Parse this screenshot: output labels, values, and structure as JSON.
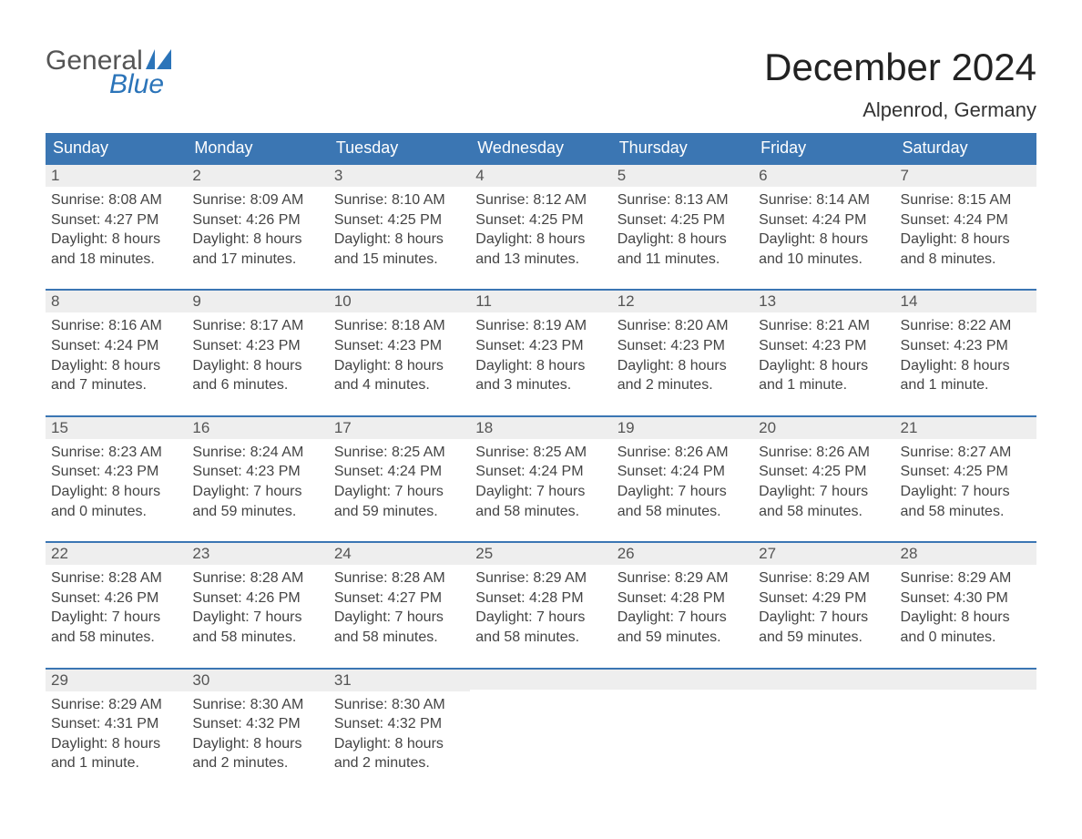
{
  "logo": {
    "general": "General",
    "blue": "Blue",
    "accent_color": "#2b74b9"
  },
  "title": "December 2024",
  "location": "Alpenrod, Germany",
  "colors": {
    "header_bg": "#3b76b3",
    "header_text": "#ffffff",
    "daynum_bg": "#eeeeee",
    "daynum_border": "#3b76b3",
    "body_bg": "#ffffff",
    "text": "#444444"
  },
  "weekdays": [
    "Sunday",
    "Monday",
    "Tuesday",
    "Wednesday",
    "Thursday",
    "Friday",
    "Saturday"
  ],
  "weeks": [
    [
      {
        "n": "1",
        "sunrise": "Sunrise: 8:08 AM",
        "sunset": "Sunset: 4:27 PM",
        "day1": "Daylight: 8 hours",
        "day2": "and 18 minutes."
      },
      {
        "n": "2",
        "sunrise": "Sunrise: 8:09 AM",
        "sunset": "Sunset: 4:26 PM",
        "day1": "Daylight: 8 hours",
        "day2": "and 17 minutes."
      },
      {
        "n": "3",
        "sunrise": "Sunrise: 8:10 AM",
        "sunset": "Sunset: 4:25 PM",
        "day1": "Daylight: 8 hours",
        "day2": "and 15 minutes."
      },
      {
        "n": "4",
        "sunrise": "Sunrise: 8:12 AM",
        "sunset": "Sunset: 4:25 PM",
        "day1": "Daylight: 8 hours",
        "day2": "and 13 minutes."
      },
      {
        "n": "5",
        "sunrise": "Sunrise: 8:13 AM",
        "sunset": "Sunset: 4:25 PM",
        "day1": "Daylight: 8 hours",
        "day2": "and 11 minutes."
      },
      {
        "n": "6",
        "sunrise": "Sunrise: 8:14 AM",
        "sunset": "Sunset: 4:24 PM",
        "day1": "Daylight: 8 hours",
        "day2": "and 10 minutes."
      },
      {
        "n": "7",
        "sunrise": "Sunrise: 8:15 AM",
        "sunset": "Sunset: 4:24 PM",
        "day1": "Daylight: 8 hours",
        "day2": "and 8 minutes."
      }
    ],
    [
      {
        "n": "8",
        "sunrise": "Sunrise: 8:16 AM",
        "sunset": "Sunset: 4:24 PM",
        "day1": "Daylight: 8 hours",
        "day2": "and 7 minutes."
      },
      {
        "n": "9",
        "sunrise": "Sunrise: 8:17 AM",
        "sunset": "Sunset: 4:23 PM",
        "day1": "Daylight: 8 hours",
        "day2": "and 6 minutes."
      },
      {
        "n": "10",
        "sunrise": "Sunrise: 8:18 AM",
        "sunset": "Sunset: 4:23 PM",
        "day1": "Daylight: 8 hours",
        "day2": "and 4 minutes."
      },
      {
        "n": "11",
        "sunrise": "Sunrise: 8:19 AM",
        "sunset": "Sunset: 4:23 PM",
        "day1": "Daylight: 8 hours",
        "day2": "and 3 minutes."
      },
      {
        "n": "12",
        "sunrise": "Sunrise: 8:20 AM",
        "sunset": "Sunset: 4:23 PM",
        "day1": "Daylight: 8 hours",
        "day2": "and 2 minutes."
      },
      {
        "n": "13",
        "sunrise": "Sunrise: 8:21 AM",
        "sunset": "Sunset: 4:23 PM",
        "day1": "Daylight: 8 hours",
        "day2": "and 1 minute."
      },
      {
        "n": "14",
        "sunrise": "Sunrise: 8:22 AM",
        "sunset": "Sunset: 4:23 PM",
        "day1": "Daylight: 8 hours",
        "day2": "and 1 minute."
      }
    ],
    [
      {
        "n": "15",
        "sunrise": "Sunrise: 8:23 AM",
        "sunset": "Sunset: 4:23 PM",
        "day1": "Daylight: 8 hours",
        "day2": "and 0 minutes."
      },
      {
        "n": "16",
        "sunrise": "Sunrise: 8:24 AM",
        "sunset": "Sunset: 4:23 PM",
        "day1": "Daylight: 7 hours",
        "day2": "and 59 minutes."
      },
      {
        "n": "17",
        "sunrise": "Sunrise: 8:25 AM",
        "sunset": "Sunset: 4:24 PM",
        "day1": "Daylight: 7 hours",
        "day2": "and 59 minutes."
      },
      {
        "n": "18",
        "sunrise": "Sunrise: 8:25 AM",
        "sunset": "Sunset: 4:24 PM",
        "day1": "Daylight: 7 hours",
        "day2": "and 58 minutes."
      },
      {
        "n": "19",
        "sunrise": "Sunrise: 8:26 AM",
        "sunset": "Sunset: 4:24 PM",
        "day1": "Daylight: 7 hours",
        "day2": "and 58 minutes."
      },
      {
        "n": "20",
        "sunrise": "Sunrise: 8:26 AM",
        "sunset": "Sunset: 4:25 PM",
        "day1": "Daylight: 7 hours",
        "day2": "and 58 minutes."
      },
      {
        "n": "21",
        "sunrise": "Sunrise: 8:27 AM",
        "sunset": "Sunset: 4:25 PM",
        "day1": "Daylight: 7 hours",
        "day2": "and 58 minutes."
      }
    ],
    [
      {
        "n": "22",
        "sunrise": "Sunrise: 8:28 AM",
        "sunset": "Sunset: 4:26 PM",
        "day1": "Daylight: 7 hours",
        "day2": "and 58 minutes."
      },
      {
        "n": "23",
        "sunrise": "Sunrise: 8:28 AM",
        "sunset": "Sunset: 4:26 PM",
        "day1": "Daylight: 7 hours",
        "day2": "and 58 minutes."
      },
      {
        "n": "24",
        "sunrise": "Sunrise: 8:28 AM",
        "sunset": "Sunset: 4:27 PM",
        "day1": "Daylight: 7 hours",
        "day2": "and 58 minutes."
      },
      {
        "n": "25",
        "sunrise": "Sunrise: 8:29 AM",
        "sunset": "Sunset: 4:28 PM",
        "day1": "Daylight: 7 hours",
        "day2": "and 58 minutes."
      },
      {
        "n": "26",
        "sunrise": "Sunrise: 8:29 AM",
        "sunset": "Sunset: 4:28 PM",
        "day1": "Daylight: 7 hours",
        "day2": "and 59 minutes."
      },
      {
        "n": "27",
        "sunrise": "Sunrise: 8:29 AM",
        "sunset": "Sunset: 4:29 PM",
        "day1": "Daylight: 7 hours",
        "day2": "and 59 minutes."
      },
      {
        "n": "28",
        "sunrise": "Sunrise: 8:29 AM",
        "sunset": "Sunset: 4:30 PM",
        "day1": "Daylight: 8 hours",
        "day2": "and 0 minutes."
      }
    ],
    [
      {
        "n": "29",
        "sunrise": "Sunrise: 8:29 AM",
        "sunset": "Sunset: 4:31 PM",
        "day1": "Daylight: 8 hours",
        "day2": "and 1 minute."
      },
      {
        "n": "30",
        "sunrise": "Sunrise: 8:30 AM",
        "sunset": "Sunset: 4:32 PM",
        "day1": "Daylight: 8 hours",
        "day2": "and 2 minutes."
      },
      {
        "n": "31",
        "sunrise": "Sunrise: 8:30 AM",
        "sunset": "Sunset: 4:32 PM",
        "day1": "Daylight: 8 hours",
        "day2": "and 2 minutes."
      },
      {
        "empty": true
      },
      {
        "empty": true
      },
      {
        "empty": true
      },
      {
        "empty": true
      }
    ]
  ]
}
